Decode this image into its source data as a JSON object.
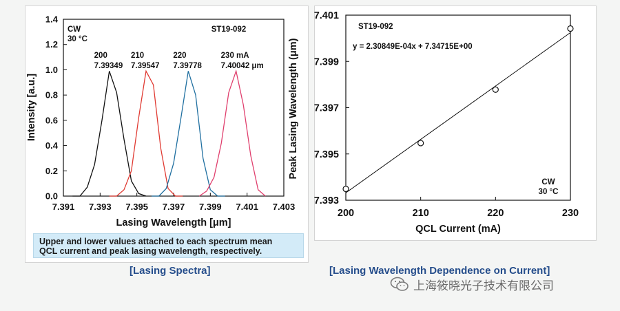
{
  "chart_data": [
    {
      "type": "line",
      "title": "Lasing Spectra",
      "xlabel": "Lasing Wavelength [μm]",
      "ylabel": "Intensity [a.u.]",
      "xlim": [
        7.391,
        7.403
      ],
      "ylim": [
        0.0,
        1.4
      ],
      "x_ticks": [
        "7.391",
        "7.393",
        "7.395",
        "7.397",
        "7.399",
        "7.401",
        "7.403"
      ],
      "y_ticks": [
        "0.0",
        "0.2",
        "0.4",
        "0.6",
        "0.8",
        "1.0",
        "1.2",
        "1.4"
      ],
      "condition": [
        "CW",
        "30 °C"
      ],
      "sample_id": "ST19-092",
      "series": [
        {
          "name": "200",
          "current_label": "200",
          "peak_label": "7.39349",
          "color": "#111111",
          "x": [
            7.3915,
            7.3919,
            7.3923,
            7.3927,
            7.3931,
            7.3935,
            7.3939,
            7.3943,
            7.3947,
            7.3951,
            7.3955
          ],
          "y": [
            0.0,
            0.0,
            0.07,
            0.25,
            0.6,
            0.99,
            0.82,
            0.45,
            0.12,
            0.02,
            0.0
          ]
        },
        {
          "name": "210",
          "current_label": "210",
          "peak_label": "7.39547",
          "color": "#e03a32",
          "x": [
            7.3935,
            7.3939,
            7.3943,
            7.3947,
            7.3951,
            7.3955,
            7.3959,
            7.3963,
            7.3967,
            7.3971,
            7.3975
          ],
          "y": [
            0.0,
            0.0,
            0.05,
            0.2,
            0.62,
            0.99,
            0.88,
            0.38,
            0.06,
            0.0,
            0.0
          ]
        },
        {
          "name": "220",
          "current_label": "220",
          "peak_label": "7.39778",
          "color": "#1f6fa0",
          "x": [
            7.3958,
            7.3962,
            7.3966,
            7.397,
            7.3974,
            7.3978,
            7.3982,
            7.3986,
            7.399,
            7.3994,
            7.3998
          ],
          "y": [
            0.0,
            0.0,
            0.06,
            0.26,
            0.62,
            0.99,
            0.8,
            0.3,
            0.05,
            0.0,
            0.0
          ]
        },
        {
          "name": "230",
          "current_label": "230 mA",
          "peak_label": "7.40042 μm",
          "color": "#e0406e",
          "x": [
            7.3984,
            7.3988,
            7.3992,
            7.3996,
            7.4,
            7.4004,
            7.4008,
            7.4012,
            7.4016,
            7.402
          ],
          "y": [
            0.0,
            0.04,
            0.15,
            0.42,
            0.82,
            0.99,
            0.72,
            0.32,
            0.05,
            0.0
          ]
        }
      ]
    },
    {
      "type": "scatter",
      "title": "Lasing Wavelength Dependence on Current",
      "xlabel": "QCL Current (mA)",
      "ylabel": "Peak Lasing Wavelength (μm)",
      "xlim": [
        200,
        230
      ],
      "ylim": [
        7.393,
        7.401
      ],
      "x_ticks": [
        "200",
        "210",
        "220",
        "230"
      ],
      "y_ticks": [
        "7.393",
        "7.395",
        "7.397",
        "7.399",
        "7.401"
      ],
      "sample_id": "ST19-092",
      "condition": [
        "CW",
        "30 °C"
      ],
      "fit_equation": "y = 2.30849E-04x + 7.34715E+00",
      "fit": {
        "slope": 0.000230849,
        "intercept": 7.34715
      },
      "x": [
        200,
        210,
        220,
        230
      ],
      "y": [
        7.39349,
        7.39547,
        7.39778,
        7.40042
      ]
    }
  ],
  "note": {
    "line1": "Upper and lower values attached to each spectrum mean",
    "line2": "QCL current and peak lasing wavelength, respectively."
  },
  "captions": {
    "left": "[Lasing Spectra]",
    "right": "[Lasing Wavelength Dependence on Current]"
  },
  "watermark": {
    "text": "上海筱晓光子技术有限公司",
    "icon": "wechat-icon"
  }
}
